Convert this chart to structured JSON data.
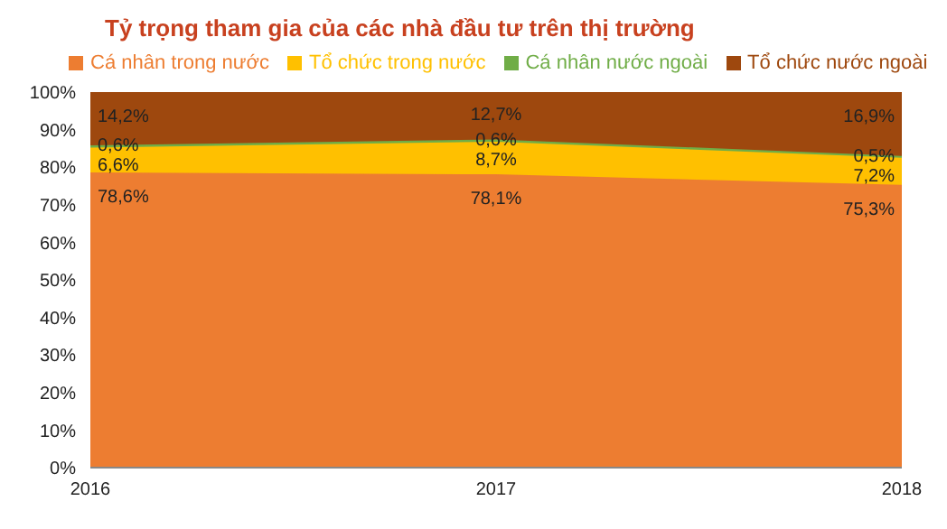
{
  "chart_data": {
    "type": "area",
    "stacked": true,
    "title": "Tỷ trọng tham gia của các nhà đầu tư trên thị trường",
    "categories": [
      "2016",
      "2017",
      "2018"
    ],
    "series": [
      {
        "name": "Cá nhân trong nước",
        "color": "#ed7d31",
        "values": [
          78.6,
          78.1,
          75.3
        ],
        "value_labels": [
          "78,6%",
          "78,1%",
          "75,3%"
        ]
      },
      {
        "name": "Tổ chức trong nước",
        "color": "#ffc000",
        "values": [
          6.6,
          8.7,
          7.2
        ],
        "value_labels": [
          "6,6%",
          "8,7%",
          "7,2%"
        ]
      },
      {
        "name": "Cá nhân nước ngoài",
        "color": "#70ad47",
        "values": [
          0.6,
          0.6,
          0.5
        ],
        "value_labels": [
          "0,6%",
          "0,6%",
          "0,5%"
        ]
      },
      {
        "name": "Tổ chức nước ngoài",
        "color": "#9e480e",
        "values": [
          14.2,
          12.7,
          16.9
        ],
        "value_labels": [
          "14,2%",
          "12,7%",
          "16,9%"
        ]
      }
    ],
    "ylim": [
      0,
      100
    ],
    "yticks": [
      {
        "value": 0,
        "label": "0%"
      },
      {
        "value": 10,
        "label": "10%"
      },
      {
        "value": 20,
        "label": "20%"
      },
      {
        "value": 30,
        "label": "30%"
      },
      {
        "value": 40,
        "label": "40%"
      },
      {
        "value": 50,
        "label": "50%"
      },
      {
        "value": 60,
        "label": "60%"
      },
      {
        "value": 70,
        "label": "70%"
      },
      {
        "value": 80,
        "label": "80%"
      },
      {
        "value": 90,
        "label": "90%"
      },
      {
        "value": 100,
        "label": "100%"
      }
    ],
    "legend": "top left"
  }
}
